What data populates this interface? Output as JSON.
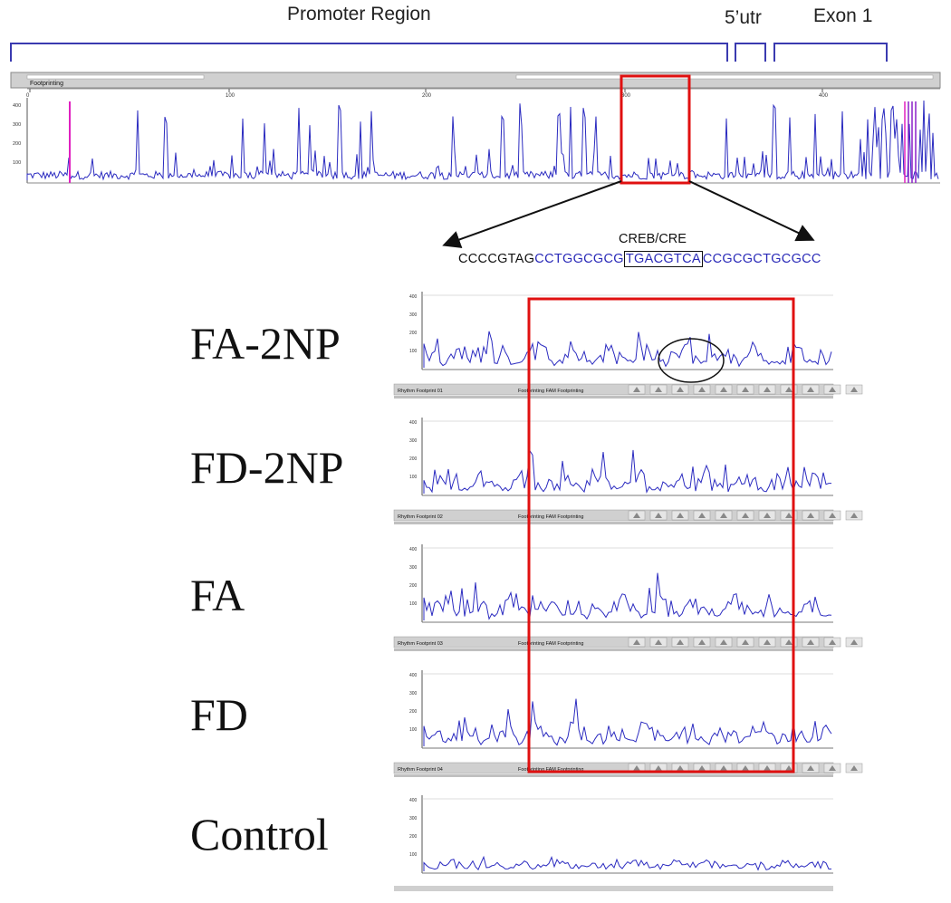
{
  "regions": {
    "promoter": "Promoter Region",
    "utr": "5’utr",
    "exon": "Exon 1"
  },
  "overview": {
    "header_label": "Footprinting",
    "ticks": [
      "0",
      "100",
      "200",
      "300",
      "400"
    ],
    "y_ticks": [
      "400",
      "300",
      "200",
      "100"
    ]
  },
  "zoom": {
    "motif_label": "CREB/CRE",
    "sequence": {
      "prefix": "CCCCGTAG",
      "blue_pre": "CCTGGCGCG",
      "boxed": "TGACGTCA",
      "blue_post": "CCGCGCTGCGCC"
    }
  },
  "samples": [
    {
      "label": "FA-2NP",
      "strip_text": "Rhythm Footprint 01",
      "strip_mid": "Footprinting FAM   Footprinting"
    },
    {
      "label": "FD-2NP",
      "strip_text": "Rhythm Footprint 02",
      "strip_mid": "Footprinting FAM   Footprinting"
    },
    {
      "label": "FA",
      "strip_text": "Rhythm Footprint 03",
      "strip_mid": "Footprinting FAM   Footprinting"
    },
    {
      "label": "FD",
      "strip_text": "Rhythm Footprint 04",
      "strip_mid": "Footprinting FAM   Footprinting"
    },
    {
      "label": "Control",
      "strip_text": "",
      "strip_mid": ""
    }
  ],
  "panel_y_ticks": [
    "400",
    "300",
    "200",
    "100"
  ],
  "colors": {
    "trace": "#2b2bc0",
    "highlight_box": "#e01010",
    "bracket": "#3a3ab0",
    "marker_magenta": "#e020c0",
    "marker_purple": "#8a20c8",
    "strip_bg": "#d0d0d0"
  }
}
